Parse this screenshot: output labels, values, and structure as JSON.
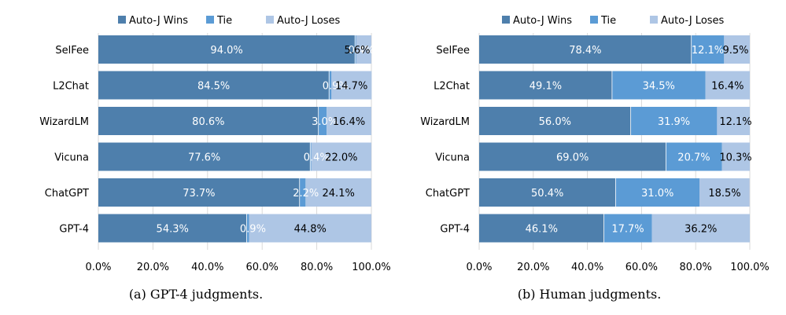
{
  "chart_data": [
    {
      "type": "bar",
      "orientation": "horizontal",
      "stacked": true,
      "caption": "(a) GPT-4 judgments.",
      "categories": [
        "SelFee",
        "L2Chat",
        "WizardLM",
        "Vicuna",
        "ChatGPT",
        "GPT-4"
      ],
      "series": [
        {
          "name": "Auto-J Wins",
          "values": [
            94.0,
            84.5,
            80.6,
            77.6,
            73.7,
            54.3
          ]
        },
        {
          "name": "Tie",
          "values": [
            0.4,
            0.9,
            3.0,
            0.4,
            2.2,
            0.9
          ]
        },
        {
          "name": "Auto-J Loses",
          "values": [
            5.6,
            14.7,
            16.4,
            22.0,
            24.1,
            44.8
          ]
        }
      ],
      "data_labels": [
        [
          "94.0%",
          "84.5%",
          "80.6%",
          "77.6%",
          "73.7%",
          "54.3%"
        ],
        [
          "0.4%",
          "0.9%",
          "3.0%",
          "0.4%",
          "2.2%",
          "0.9%"
        ],
        [
          "5.6%",
          "14.7%",
          "16.4%",
          "22.0%",
          "24.1%",
          "44.8%"
        ]
      ],
      "x_ticks": [
        "0.0%",
        "20.0%",
        "40.0%",
        "60.0%",
        "80.0%",
        "100.0%"
      ],
      "xlim": [
        0,
        100
      ],
      "legend_position": "top",
      "grid": "vertical"
    },
    {
      "type": "bar",
      "orientation": "horizontal",
      "stacked": true,
      "caption": "(b) Human judgments.",
      "categories": [
        "SelFee",
        "L2Chat",
        "WizardLM",
        "Vicuna",
        "ChatGPT",
        "GPT-4"
      ],
      "series": [
        {
          "name": "Auto-J Wins",
          "values": [
            78.4,
            49.1,
            56.0,
            69.0,
            50.4,
            46.1
          ]
        },
        {
          "name": "Tie",
          "values": [
            12.1,
            34.5,
            31.9,
            20.7,
            31.0,
            17.7
          ]
        },
        {
          "name": "Auto-J Loses",
          "values": [
            9.5,
            16.4,
            12.1,
            10.3,
            18.5,
            36.2
          ]
        }
      ],
      "data_labels": [
        [
          "78.4%",
          "49.1%",
          "56.0%",
          "69.0%",
          "50.4%",
          "46.1%"
        ],
        [
          "12.1%",
          "34.5%",
          "31.9%",
          "20.7%",
          "31.0%",
          "17.7%"
        ],
        [
          "9.5%",
          "16.4%",
          "12.1%",
          "10.3%",
          "18.5%",
          "36.2%"
        ]
      ],
      "x_ticks": [
        "0.0%",
        "20.0%",
        "40.0%",
        "60.0%",
        "80.0%",
        "100.0%"
      ],
      "xlim": [
        0,
        100
      ],
      "legend_position": "top",
      "grid": "vertical"
    }
  ],
  "colors": {
    "wins": "#4e7fac",
    "tie": "#5b9bd5",
    "loses": "#aec6e5",
    "grid": "#d9d9d9",
    "text": "#000000",
    "label_light": "#ffffff"
  }
}
